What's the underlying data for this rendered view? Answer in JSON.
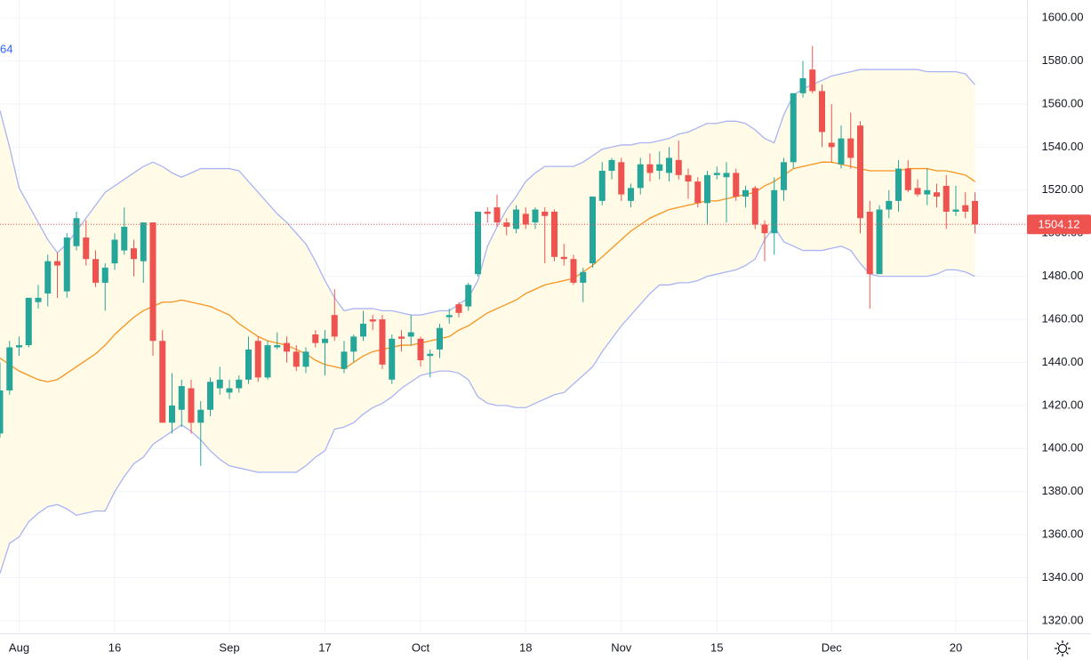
{
  "chart_data": {
    "type": "candlestick",
    "indicator_fragment": "64",
    "categories": [
      null,
      null,
      "Aug",
      null,
      null,
      null,
      null,
      null,
      null,
      null,
      null,
      null,
      "16",
      null,
      null,
      null,
      null,
      null,
      null,
      null,
      null,
      null,
      null,
      null,
      "Sep",
      null,
      null,
      null,
      null,
      null,
      null,
      null,
      null,
      null,
      "17",
      null,
      null,
      null,
      null,
      null,
      null,
      null,
      null,
      null,
      "Oct",
      null,
      null,
      null,
      null,
      null,
      null,
      null,
      null,
      null,
      null,
      "18",
      null,
      null,
      null,
      null,
      null,
      null,
      null,
      null,
      null,
      "Nov",
      null,
      null,
      null,
      null,
      null,
      null,
      null,
      null,
      null,
      "15",
      null,
      null,
      null,
      null,
      null,
      null,
      null,
      null,
      null,
      null,
      null,
      "Dec",
      null,
      null,
      null,
      null,
      null,
      null,
      null,
      null,
      null,
      null,
      null,
      null,
      "20",
      null,
      null
    ],
    "open": [
      1407,
      1427,
      1447,
      1448,
      1468,
      1472,
      1487,
      1473,
      1494,
      1498,
      1488,
      1477,
      1486,
      1492,
      1493,
      1487,
      1505,
      1450,
      1412,
      1418,
      1428,
      1412,
      1418,
      1428,
      1426,
      1428,
      1432,
      1450,
      1433,
      1447,
      1449,
      1445,
      1438,
      1453,
      1449,
      1462,
      1437,
      1445,
      1452,
      1460,
      1460,
      1432,
      1452,
      1452,
      1451,
      1443,
      1446,
      1461,
      1467,
      1466,
      1481,
      1510,
      1512,
      1505,
      1502,
      1509,
      1505,
      1510,
      1510,
      1489,
      1488,
      1477,
      1486,
      1515,
      1529,
      1533,
      1515,
      1521,
      1532,
      1529,
      1528,
      1534,
      1527,
      1524,
      1514,
      1527,
      1526,
      1528,
      1517,
      1521,
      1504,
      1500,
      1520,
      1533,
      1565,
      1576,
      1566,
      1542,
      1532,
      1544,
      1550,
      1510,
      1481,
      1511,
      1515,
      1530,
      1521,
      1518,
      1519,
      1522,
      1510,
      1513,
      1515
    ],
    "high": [
      1440,
      1450,
      1452,
      1470,
      1476,
      1490,
      1491,
      1500,
      1510,
      1506,
      1492,
      1486,
      1500,
      1512,
      1497,
      1505,
      1505,
      1455,
      1435,
      1432,
      1432,
      1422,
      1433,
      1438,
      1432,
      1434,
      1452,
      1452,
      1450,
      1454,
      1452,
      1448,
      1447,
      1455,
      1455,
      1474,
      1450,
      1453,
      1464,
      1462,
      1462,
      1453,
      1455,
      1462,
      1452,
      1446,
      1458,
      1465,
      1468,
      1477,
      1510,
      1512,
      1518,
      1507,
      1513,
      1512,
      1512,
      1512,
      1511,
      1495,
      1490,
      1484,
      1517,
      1533,
      1535,
      1535,
      1523,
      1535,
      1537,
      1538,
      1540,
      1543,
      1530,
      1526,
      1529,
      1531,
      1533,
      1530,
      1522,
      1522,
      1506,
      1526,
      1535,
      1565,
      1580,
      1587,
      1569,
      1560,
      1550,
      1556,
      1552,
      1515,
      1513,
      1520,
      1534,
      1534,
      1525,
      1530,
      1523,
      1527,
      1522,
      1519,
      1519
    ],
    "low": [
      1405,
      1425,
      1443,
      1447,
      1465,
      1466,
      1470,
      1470,
      1492,
      1485,
      1475,
      1464,
      1483,
      1490,
      1480,
      1477,
      1443,
      1412,
      1407,
      1410,
      1407,
      1392,
      1415,
      1425,
      1423,
      1426,
      1430,
      1431,
      1432,
      1446,
      1440,
      1436,
      1435,
      1447,
      1434,
      1450,
      1435,
      1440,
      1450,
      1455,
      1437,
      1430,
      1445,
      1448,
      1438,
      1433,
      1442,
      1458,
      1461,
      1464,
      1480,
      1505,
      1503,
      1499,
      1500,
      1502,
      1502,
      1486,
      1487,
      1485,
      1476,
      1468,
      1484,
      1513,
      1525,
      1515,
      1512,
      1518,
      1524,
      1525,
      1524,
      1525,
      1516,
      1512,
      1504,
      1525,
      1505,
      1515,
      1512,
      1502,
      1487,
      1490,
      1515,
      1530,
      1563,
      1565,
      1540,
      1533,
      1530,
      1530,
      1500,
      1465,
      1481,
      1507,
      1510,
      1519,
      1517,
      1513,
      1512,
      1502,
      1508,
      1507,
      1500
    ],
    "close": [
      1427,
      1447,
      1448,
      1470,
      1470,
      1487,
      1485,
      1498,
      1507,
      1488,
      1477,
      1484,
      1497,
      1503,
      1488,
      1505,
      1450,
      1412,
      1420,
      1429,
      1412,
      1418,
      1431,
      1432,
      1428,
      1432,
      1446,
      1433,
      1448,
      1448,
      1445,
      1438,
      1445,
      1449,
      1451,
      1452,
      1445,
      1452,
      1458,
      1459,
      1439,
      1451,
      1451,
      1454,
      1441,
      1444,
      1456,
      1462,
      1463,
      1476,
      1510,
      1509,
      1505,
      1503,
      1511,
      1504,
      1511,
      1508,
      1489,
      1488,
      1477,
      1482,
      1517,
      1529,
      1534,
      1518,
      1521,
      1532,
      1528,
      1532,
      1535,
      1527,
      1524,
      1514,
      1527,
      1528,
      1528,
      1517,
      1520,
      1504,
      1500,
      1520,
      1533,
      1565,
      1572,
      1566,
      1547,
      1540,
      1544,
      1535,
      1507,
      1481,
      1511,
      1515,
      1530,
      1520,
      1518,
      1520,
      1517,
      1510,
      1511,
      1510,
      1504.12
    ],
    "up_color": "#26a69a",
    "down_color": "#ef5350",
    "series": [
      {
        "color": "#a9b4f5",
        "values": [
          1557,
          1540,
          1521,
          1513,
          1505,
          1497,
          1491,
          1495,
          1501,
          1507,
          1513,
          1519,
          1522,
          1525,
          1528,
          1531,
          1533,
          1531,
          1528,
          1526,
          1528,
          1530,
          1530,
          1530,
          1530,
          1529,
          1524,
          1519,
          1514,
          1509,
          1505,
          1500,
          1495,
          1487,
          1478,
          1470,
          1464,
          1465,
          1465,
          1465,
          1464,
          1464,
          1463,
          1462,
          1462,
          1463,
          1464,
          1464,
          1467,
          1470,
          1478,
          1494,
          1503,
          1511,
          1517,
          1524,
          1528,
          1531,
          1531,
          1531,
          1531,
          1533,
          1536,
          1539,
          1540,
          1541,
          1541,
          1542,
          1542,
          1543,
          1544,
          1546,
          1547,
          1549,
          1551,
          1551,
          1552,
          1552,
          1551,
          1548,
          1544,
          1542,
          1555,
          1564,
          1567,
          1569,
          1571,
          1573,
          1574,
          1575,
          1576,
          1576,
          1576,
          1576,
          1576,
          1576,
          1576,
          1575,
          1575,
          1575,
          1575,
          1574,
          1569
        ]
      },
      {
        "color": "#f7931e",
        "values": [
          1442,
          1439,
          1436,
          1434,
          1432,
          1431,
          1432,
          1435,
          1438,
          1441,
          1444,
          1448,
          1453,
          1457,
          1461,
          1464,
          1466,
          1468,
          1468,
          1469,
          1468,
          1467,
          1466,
          1464,
          1462,
          1458,
          1455,
          1452,
          1450,
          1449,
          1448,
          1446,
          1444,
          1441,
          1439,
          1438,
          1437,
          1440,
          1443,
          1445,
          1446,
          1447,
          1448,
          1448,
          1449,
          1450,
          1451,
          1452,
          1455,
          1457,
          1460,
          1463,
          1465,
          1467,
          1469,
          1472,
          1474,
          1476,
          1477,
          1478,
          1479,
          1482,
          1485,
          1489,
          1493,
          1497,
          1501,
          1504,
          1507,
          1509,
          1511,
          1512,
          1513,
          1514,
          1515,
          1515,
          1516,
          1517,
          1518,
          1519,
          1522,
          1524,
          1527,
          1530,
          1531,
          1532,
          1533,
          1533,
          1532,
          1531,
          1530,
          1529,
          1529,
          1529,
          1529,
          1530,
          1530,
          1530,
          1529,
          1529,
          1528,
          1527,
          1524
        ]
      },
      {
        "color": "#a9b4f5",
        "values": [
          1342,
          1356,
          1359,
          1366,
          1370,
          1373,
          1374,
          1372,
          1369,
          1370,
          1371,
          1371,
          1380,
          1387,
          1393,
          1396,
          1402,
          1405,
          1408,
          1411,
          1408,
          1404,
          1399,
          1395,
          1392,
          1391,
          1390,
          1389,
          1389,
          1389,
          1389,
          1389,
          1392,
          1396,
          1399,
          1409,
          1410,
          1412,
          1416,
          1419,
          1421,
          1424,
          1428,
          1431,
          1434,
          1435,
          1436,
          1436,
          1435,
          1432,
          1424,
          1421,
          1420,
          1420,
          1419,
          1419,
          1421,
          1423,
          1425,
          1426,
          1430,
          1434,
          1438,
          1445,
          1451,
          1457,
          1462,
          1467,
          1472,
          1476,
          1476,
          1477,
          1477,
          1478,
          1480,
          1481,
          1482,
          1483,
          1485,
          1488,
          1497,
          1503,
          1496,
          1494,
          1492,
          1492,
          1492,
          1493,
          1494,
          1492,
          1486,
          1481,
          1480,
          1480,
          1480,
          1480,
          1480,
          1480,
          1481,
          1483,
          1483,
          1482,
          1480
        ]
      }
    ],
    "band_fill": "#fffbe6",
    "last_price": 1504.12,
    "last_price_color": "#ef5350",
    "ylim": [
      1314.2,
      1608.3
    ],
    "yticks": [
      {
        "value": 1320,
        "label": "1320.00"
      },
      {
        "value": 1340,
        "label": "1340.00"
      },
      {
        "value": 1360,
        "label": "1360.00"
      },
      {
        "value": 1380,
        "label": "1380.00"
      },
      {
        "value": 1400,
        "label": "1400.00"
      },
      {
        "value": 1420,
        "label": "1420.00"
      },
      {
        "value": 1440,
        "label": "1440.00"
      },
      {
        "value": 1460,
        "label": "1460.00"
      },
      {
        "value": 1480,
        "label": "1480.00"
      },
      {
        "value": 1500,
        "label": "1500.00"
      },
      {
        "value": 1520,
        "label": "1520.00"
      },
      {
        "value": 1540,
        "label": "1540.00"
      },
      {
        "value": 1560,
        "label": "1560.00"
      },
      {
        "value": 1580,
        "label": "1580.00"
      },
      {
        "value": 1600,
        "label": "1600.00"
      }
    ],
    "grid": true
  }
}
